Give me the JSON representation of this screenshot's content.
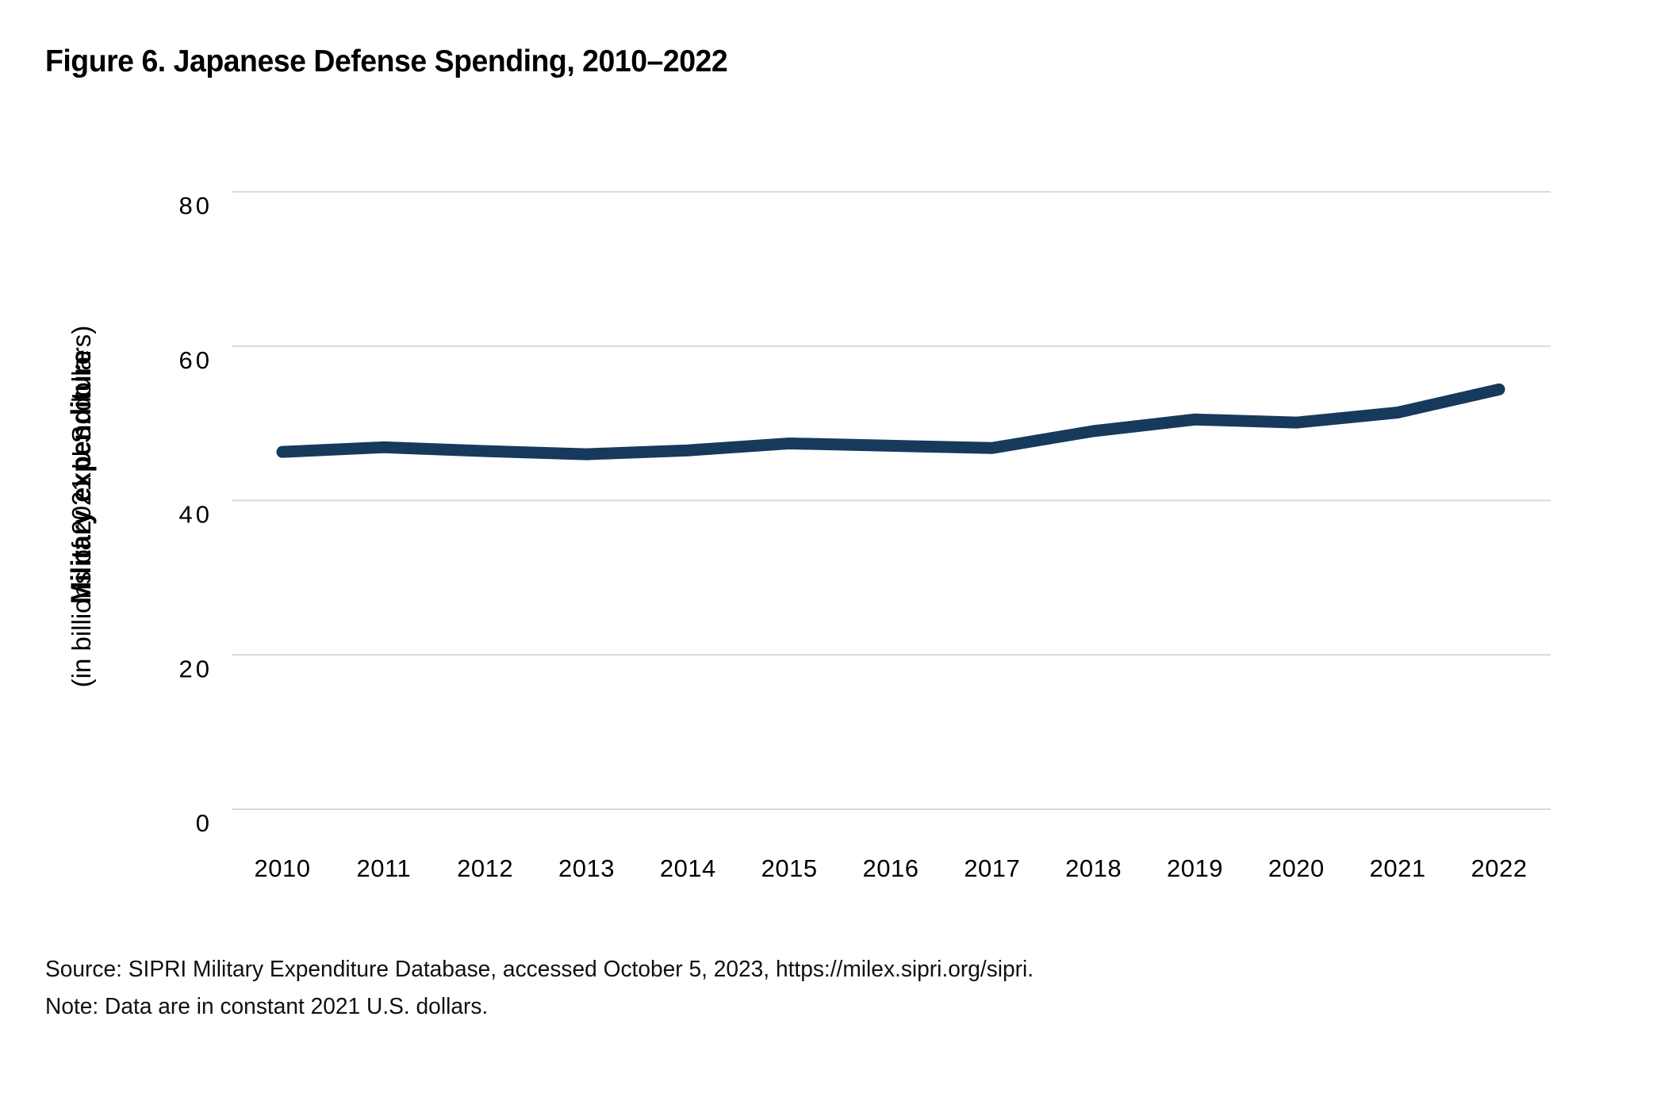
{
  "figure": {
    "title": "Figure 6. Japanese Defense Spending, 2010–2022",
    "source_line1": "Source: SIPRI Military Expenditure Database, accessed October 5, 2023, https://milex.sipri.org/sipri.",
    "source_line2": "Note: Data are in constant 2021 U.S. dollars."
  },
  "chart_data": {
    "type": "line",
    "title": "Figure 6. Japanese Defense Spending, 2010–2022",
    "x": [
      2010,
      2011,
      2012,
      2013,
      2014,
      2015,
      2016,
      2017,
      2018,
      2019,
      2020,
      2021,
      2022
    ],
    "series": [
      {
        "name": "Japan military expenditure",
        "values": [
          46.3,
          46.9,
          46.4,
          46.0,
          46.5,
          47.4,
          47.1,
          46.8,
          49.0,
          50.5,
          50.1,
          51.4,
          54.4
        ]
      }
    ],
    "xlabel": "",
    "ylabel_bold": "Military expenditure",
    "ylabel_sub": "(in billions of 2021 U.S. dollars)",
    "y_ticks": [
      0,
      20,
      40,
      60,
      80
    ],
    "ylim": [
      0,
      80
    ],
    "grid": "horizontal",
    "legend_position": "none",
    "line_color": "#17395C",
    "grid_color": "#DADADA",
    "tick_label_color": "#000000",
    "background": "#FFFFFF"
  }
}
